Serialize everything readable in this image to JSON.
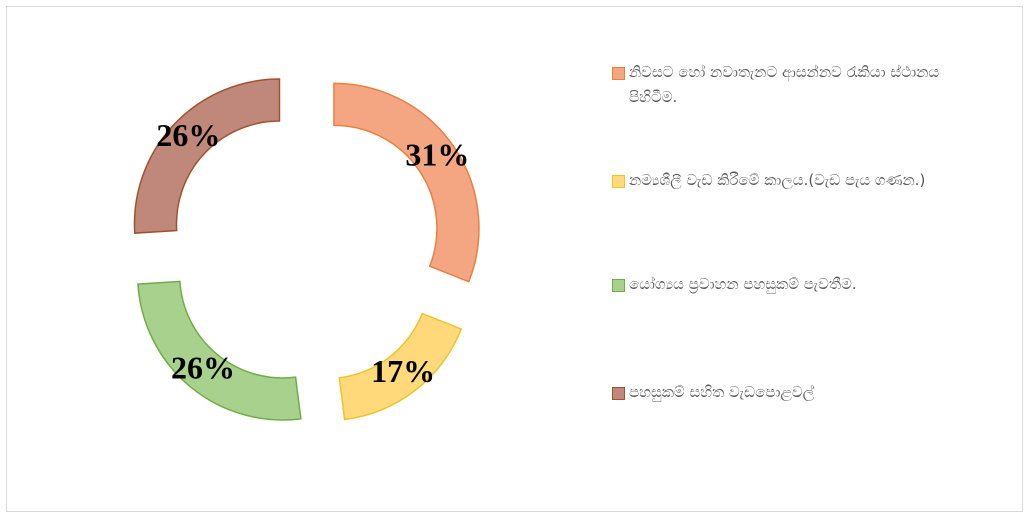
{
  "chart_data": {
    "type": "donut",
    "categories": [
      "නිවසට හෝ නවාතැනට ආසන්නව රැකියා ස්ථානය පිහිටීම.",
      "නම්‍යශීලී වැඩ කිරීමේ කාලය.(වැඩ පැය ගණන.)",
      "යෝග්‍යය ප්‍රවාහන පහසුකම් පැවතීම.",
      "පහසුකම් සහිත වැඩපොළවල්"
    ],
    "values": [
      31,
      17,
      26,
      26
    ],
    "value_labels": [
      "31%",
      "17%",
      "26%",
      "26%"
    ],
    "colors": [
      "#f4a582",
      "#ffd97a",
      "#a9d18e",
      "#c0887a"
    ],
    "edge_colors": [
      "#e9803f",
      "#f0c22c",
      "#70ad47",
      "#a0522d"
    ],
    "legend": "right"
  }
}
